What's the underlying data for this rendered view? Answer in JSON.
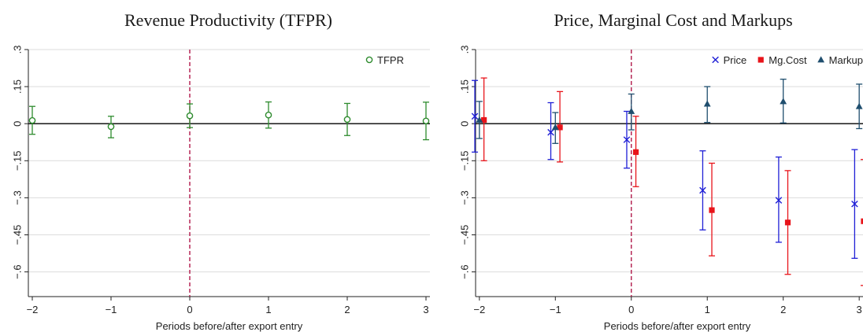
{
  "chart_data": [
    {
      "type": "scatter",
      "title": "Revenue Productivity (TFPR)",
      "xlabel": "Periods before/after export entry",
      "ylabel": "",
      "x_ticks": [
        "−2",
        "−1",
        "0",
        "1",
        "2",
        "3"
      ],
      "y_ticks": [
        ".3",
        ".15",
        "0",
        "−.15",
        "−.3",
        "−.45",
        "−.6"
      ],
      "xlim": [
        -2.05,
        3.05
      ],
      "ylim": [
        -0.7,
        0.3
      ],
      "grid": true,
      "legend_position": "top-right",
      "vertical_line_x": 0,
      "series": [
        {
          "name": "TFPR",
          "color": "#2e8b2e",
          "marker": "hollow-circle",
          "x": [
            -2,
            -1,
            0,
            1,
            2,
            3
          ],
          "y": [
            0.013,
            -0.012,
            0.032,
            0.035,
            0.017,
            0.011
          ],
          "ci_low": [
            -0.043,
            -0.057,
            -0.016,
            -0.018,
            -0.048,
            -0.065
          ],
          "ci_high": [
            0.07,
            0.03,
            0.08,
            0.088,
            0.082,
            0.087
          ]
        }
      ]
    },
    {
      "type": "scatter",
      "title": "Price, Marginal Cost and Markups",
      "xlabel": "Periods before/after export entry",
      "ylabel": "",
      "x_ticks": [
        "−2",
        "−1",
        "0",
        "1",
        "2",
        "3"
      ],
      "y_ticks": [
        ".3",
        ".15",
        "0",
        "−.15",
        "−.3",
        "−.45",
        "−.6"
      ],
      "xlim": [
        -2.05,
        3.05
      ],
      "ylim": [
        -0.7,
        0.3
      ],
      "grid": true,
      "legend_position": "top-right",
      "vertical_line_x": 0,
      "series": [
        {
          "name": "Price",
          "color": "#1f1fd6",
          "marker": "x",
          "x": [
            -2.06,
            -1.06,
            -0.06,
            0.94,
            1.94,
            2.94
          ],
          "y": [
            0.03,
            -0.035,
            -0.065,
            -0.27,
            -0.31,
            -0.325
          ],
          "ci_low": [
            -0.115,
            -0.145,
            -0.18,
            -0.43,
            -0.48,
            -0.545
          ],
          "ci_high": [
            0.175,
            0.085,
            0.05,
            -0.11,
            -0.135,
            -0.105
          ]
        },
        {
          "name": "Mg.Cost",
          "color": "#e8141a",
          "marker": "filled-square",
          "x": [
            -1.94,
            -0.94,
            0.06,
            1.06,
            2.06,
            3.06
          ],
          "y": [
            0.015,
            -0.015,
            -0.115,
            -0.35,
            -0.4,
            -0.395
          ],
          "ci_low": [
            -0.15,
            -0.155,
            -0.255,
            -0.535,
            -0.61,
            -0.655
          ],
          "ci_high": [
            0.185,
            0.13,
            0.03,
            -0.16,
            -0.19,
            -0.145
          ]
        },
        {
          "name": "Markup",
          "color": "#1f4e6e",
          "marker": "filled-triangle",
          "x": [
            -2.0,
            -1.0,
            0.0,
            1.0,
            2.0,
            3.0
          ],
          "y": [
            0.015,
            -0.015,
            0.05,
            0.08,
            0.09,
            0.07
          ],
          "ci_low": [
            -0.06,
            -0.08,
            -0.025,
            0.005,
            0.003,
            -0.02
          ],
          "ci_high": [
            0.09,
            0.045,
            0.12,
            0.15,
            0.18,
            0.16
          ]
        }
      ]
    }
  ]
}
